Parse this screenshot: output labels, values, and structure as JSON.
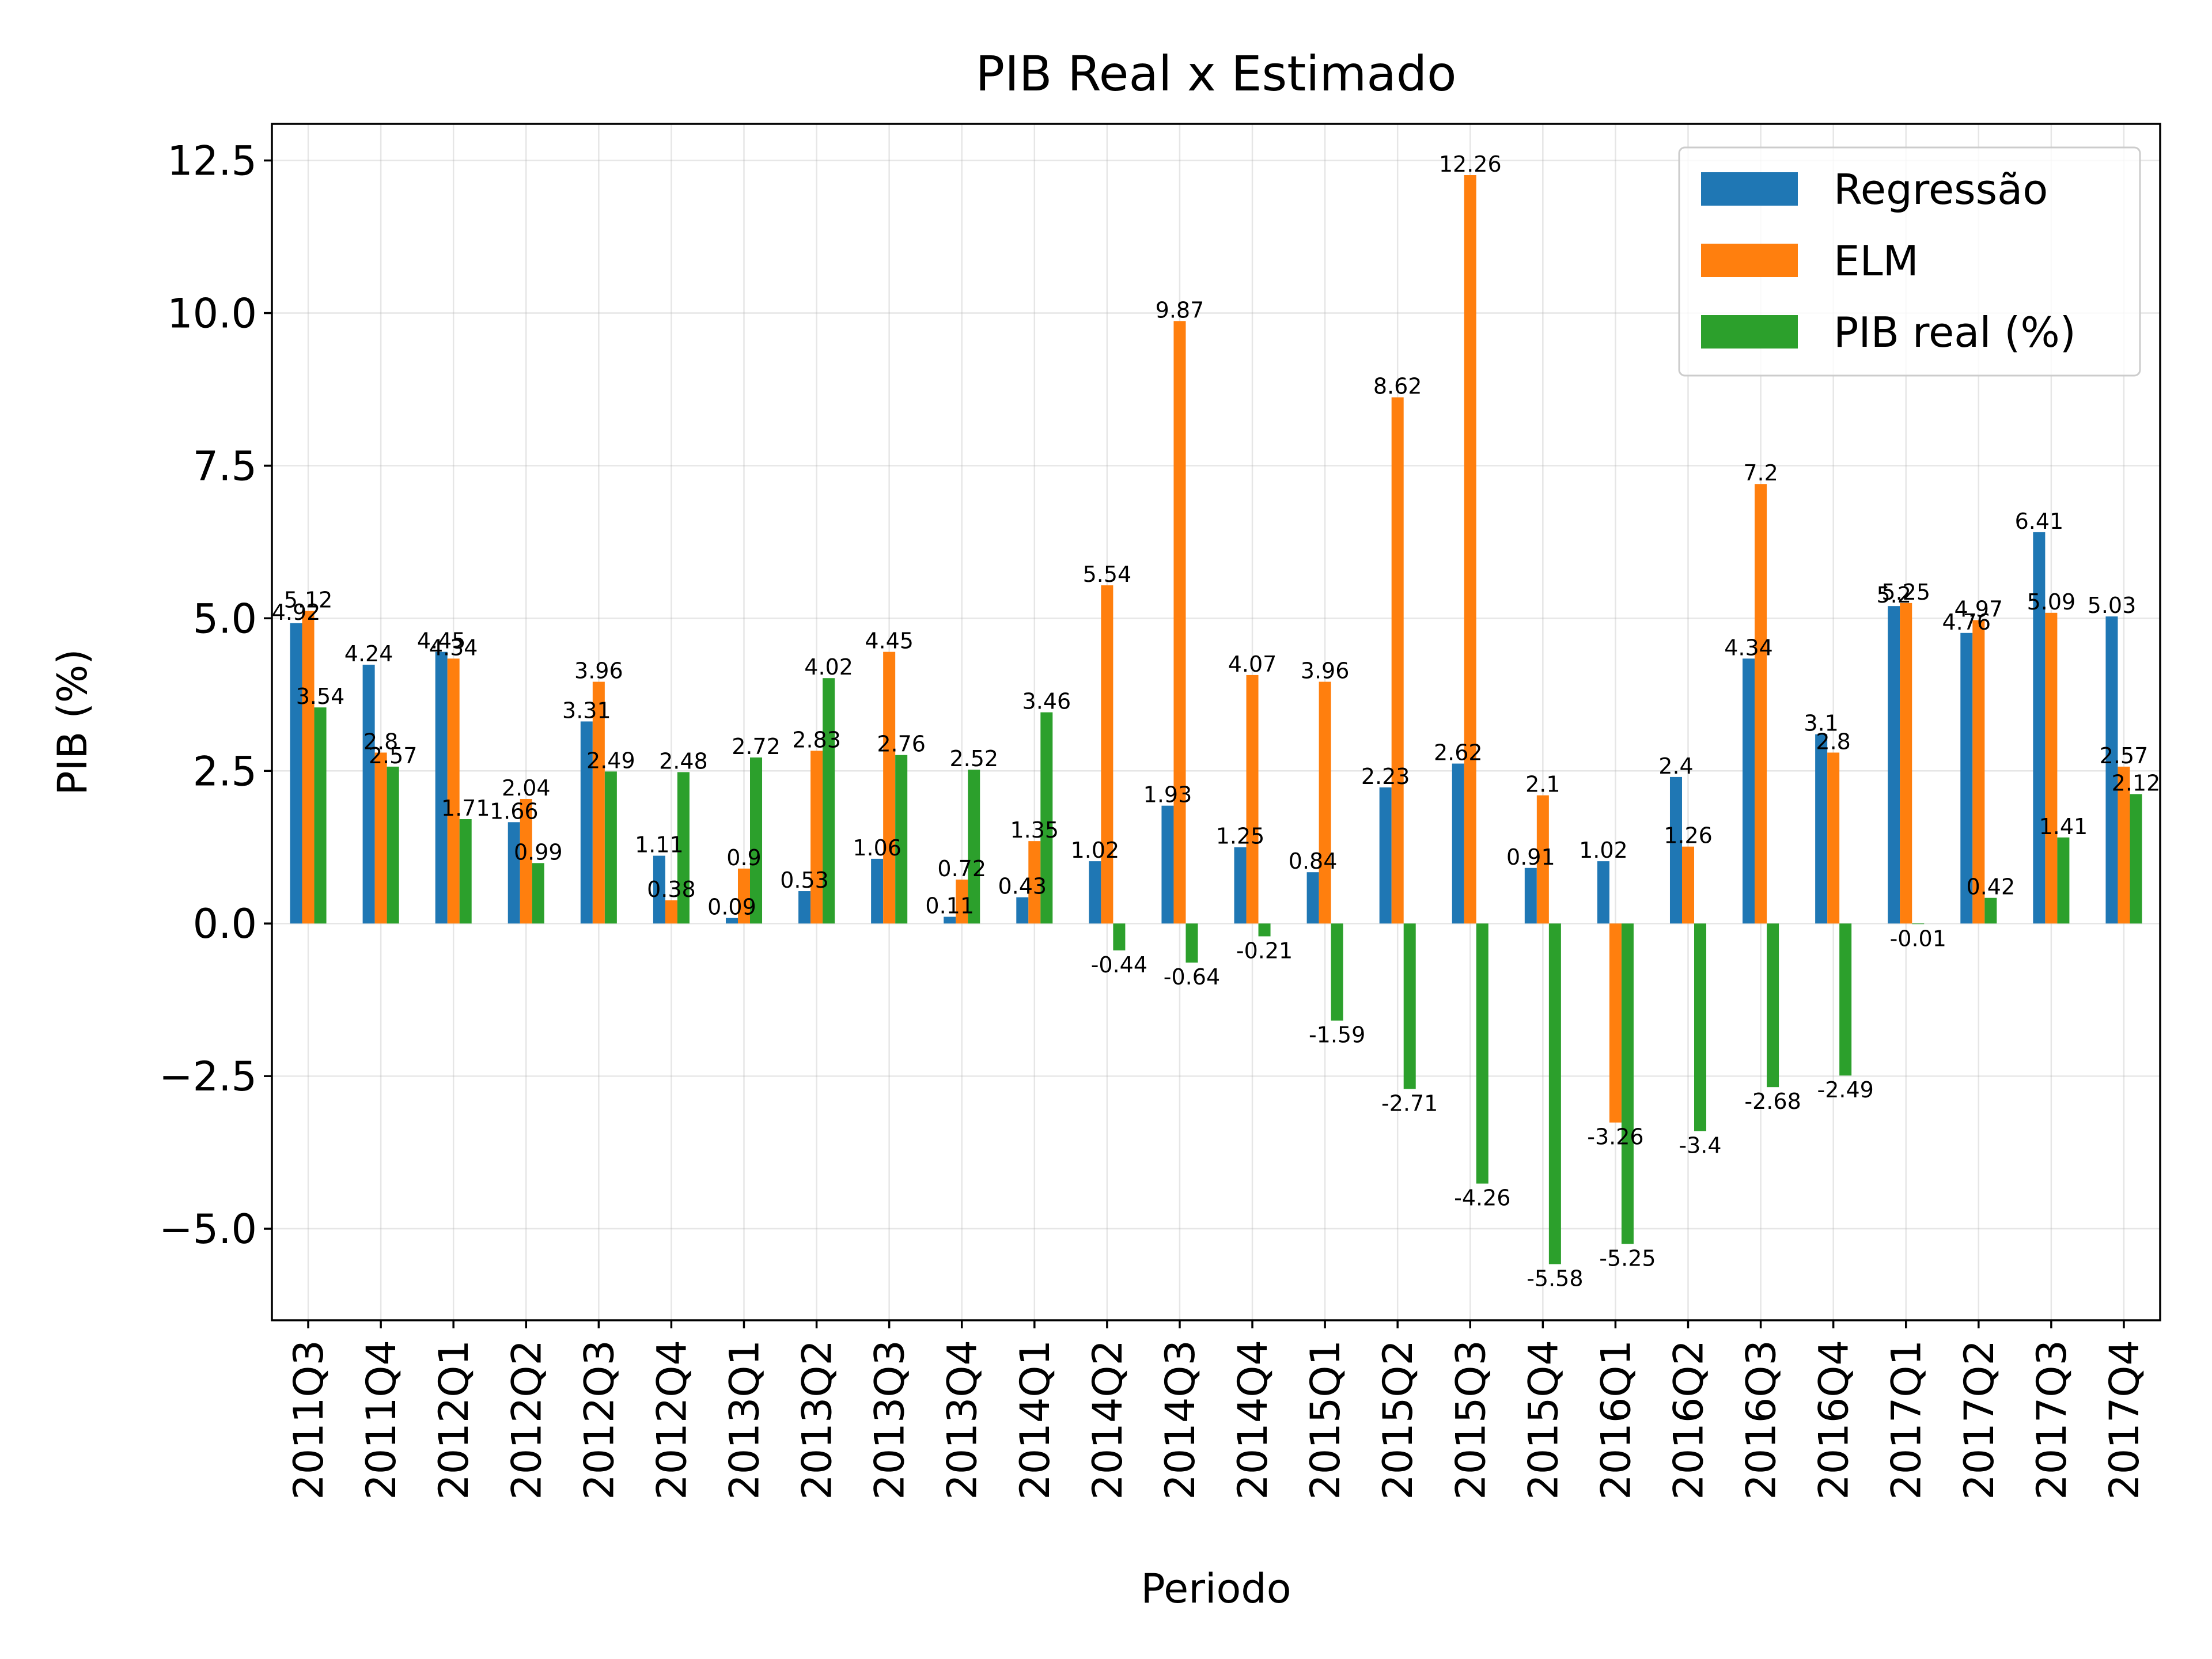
{
  "chart_data": {
    "type": "bar",
    "title": "PIB Real x Estimado",
    "xlabel": "Periodo",
    "ylabel": "PIB (%)",
    "ylim": [
      -6.5,
      13.1
    ],
    "yticks": [
      -5.0,
      -2.5,
      0.0,
      2.5,
      5.0,
      7.5,
      10.0,
      12.5
    ],
    "ytick_labels": [
      "−5.0",
      "−2.5",
      "0.0",
      "2.5",
      "5.0",
      "7.5",
      "10.0",
      "12.5"
    ],
    "grid": true,
    "legend_position": "top-right",
    "categories": [
      "2011Q3",
      "2011Q4",
      "2012Q1",
      "2012Q2",
      "2012Q3",
      "2012Q4",
      "2013Q1",
      "2013Q2",
      "2013Q3",
      "2013Q4",
      "2014Q1",
      "2014Q2",
      "2014Q3",
      "2014Q4",
      "2015Q1",
      "2015Q2",
      "2015Q3",
      "2015Q4",
      "2016Q1",
      "2016Q2",
      "2016Q3",
      "2016Q4",
      "2017Q1",
      "2017Q2",
      "2017Q3",
      "2017Q4"
    ],
    "series": [
      {
        "name": "Regressão",
        "color": "#1f77b4",
        "values": [
          4.92,
          4.24,
          4.45,
          1.66,
          3.31,
          1.11,
          0.09,
          0.53,
          1.06,
          0.11,
          0.43,
          1.02,
          1.93,
          1.25,
          0.84,
          2.23,
          2.62,
          0.91,
          1.02,
          2.4,
          4.34,
          3.1,
          5.2,
          4.76,
          6.41,
          5.03
        ]
      },
      {
        "name": "ELM",
        "color": "#ff7f0e",
        "values": [
          5.12,
          2.8,
          4.34,
          2.04,
          3.96,
          0.38,
          0.9,
          2.83,
          4.45,
          0.72,
          1.35,
          5.54,
          9.87,
          4.07,
          3.96,
          8.62,
          12.26,
          2.1,
          -3.26,
          1.26,
          7.2,
          2.8,
          5.25,
          4.97,
          5.09,
          2.57
        ]
      },
      {
        "name": "PIB real (%)",
        "color": "#2ca02c",
        "values": [
          3.54,
          2.57,
          1.71,
          0.99,
          2.49,
          2.48,
          2.72,
          4.02,
          2.76,
          2.52,
          3.46,
          -0.44,
          -0.64,
          -0.21,
          -1.59,
          -2.71,
          -4.26,
          -5.58,
          -5.25,
          -3.4,
          -2.68,
          -2.49,
          -0.01,
          0.42,
          1.41,
          2.12
        ]
      }
    ]
  }
}
